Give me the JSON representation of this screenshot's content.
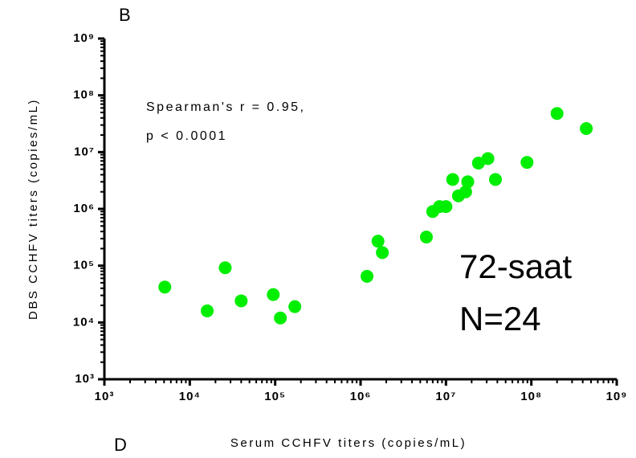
{
  "chart_data": {
    "type": "scatter",
    "panel_label": "B",
    "footer_label": "D",
    "xlabel": "Serum CCHFV titers (copies/mL)",
    "ylabel": "DBS CCHFV titers (copies/mL)",
    "annotations": [
      "Spearman's r = 0.95,",
      "p < 0.0001",
      "72-saat",
      "N=24"
    ],
    "xlog": true,
    "ylog": true,
    "xlim": [
      1000,
      1000000000
    ],
    "ylim": [
      1000,
      1000000000
    ],
    "xticks": [
      {
        "value": 1000,
        "label": "10³"
      },
      {
        "value": 10000,
        "label": "10⁴"
      },
      {
        "value": 100000,
        "label": "10⁵"
      },
      {
        "value": 1000000,
        "label": "10⁶"
      },
      {
        "value": 10000000,
        "label": "10⁷"
      },
      {
        "value": 100000000,
        "label": "10⁸"
      },
      {
        "value": 1000000000,
        "label": "10⁹"
      }
    ],
    "yticks": [
      {
        "value": 1000,
        "label": "10³"
      },
      {
        "value": 10000,
        "label": "10⁴"
      },
      {
        "value": 100000,
        "label": "10⁵"
      },
      {
        "value": 1000000,
        "label": "10⁶"
      },
      {
        "value": 10000000,
        "label": "10⁷"
      },
      {
        "value": 100000000,
        "label": "10⁸"
      },
      {
        "value": 1000000000,
        "label": "10⁹"
      }
    ],
    "series": [
      {
        "color": "#00ee00",
        "x": [
          5100,
          16000,
          26000,
          40000,
          95000,
          115000,
          170000,
          1190000,
          1600000,
          1800000,
          5900000,
          7000000,
          8400000,
          10000000,
          12000000,
          14000000,
          17000000,
          18000000,
          24000000,
          31000000,
          38000000,
          89000000,
          200000000,
          440000000
        ],
        "values": [
          42000,
          16000,
          92000,
          24000,
          31000,
          12000,
          19000,
          65000,
          270000,
          170000,
          320000,
          900000,
          1100000,
          1100000,
          3300000,
          1700000,
          2000000,
          3000000,
          6400000,
          7700000,
          3300000,
          6600000,
          48000000,
          26000000
        ]
      }
    ]
  }
}
